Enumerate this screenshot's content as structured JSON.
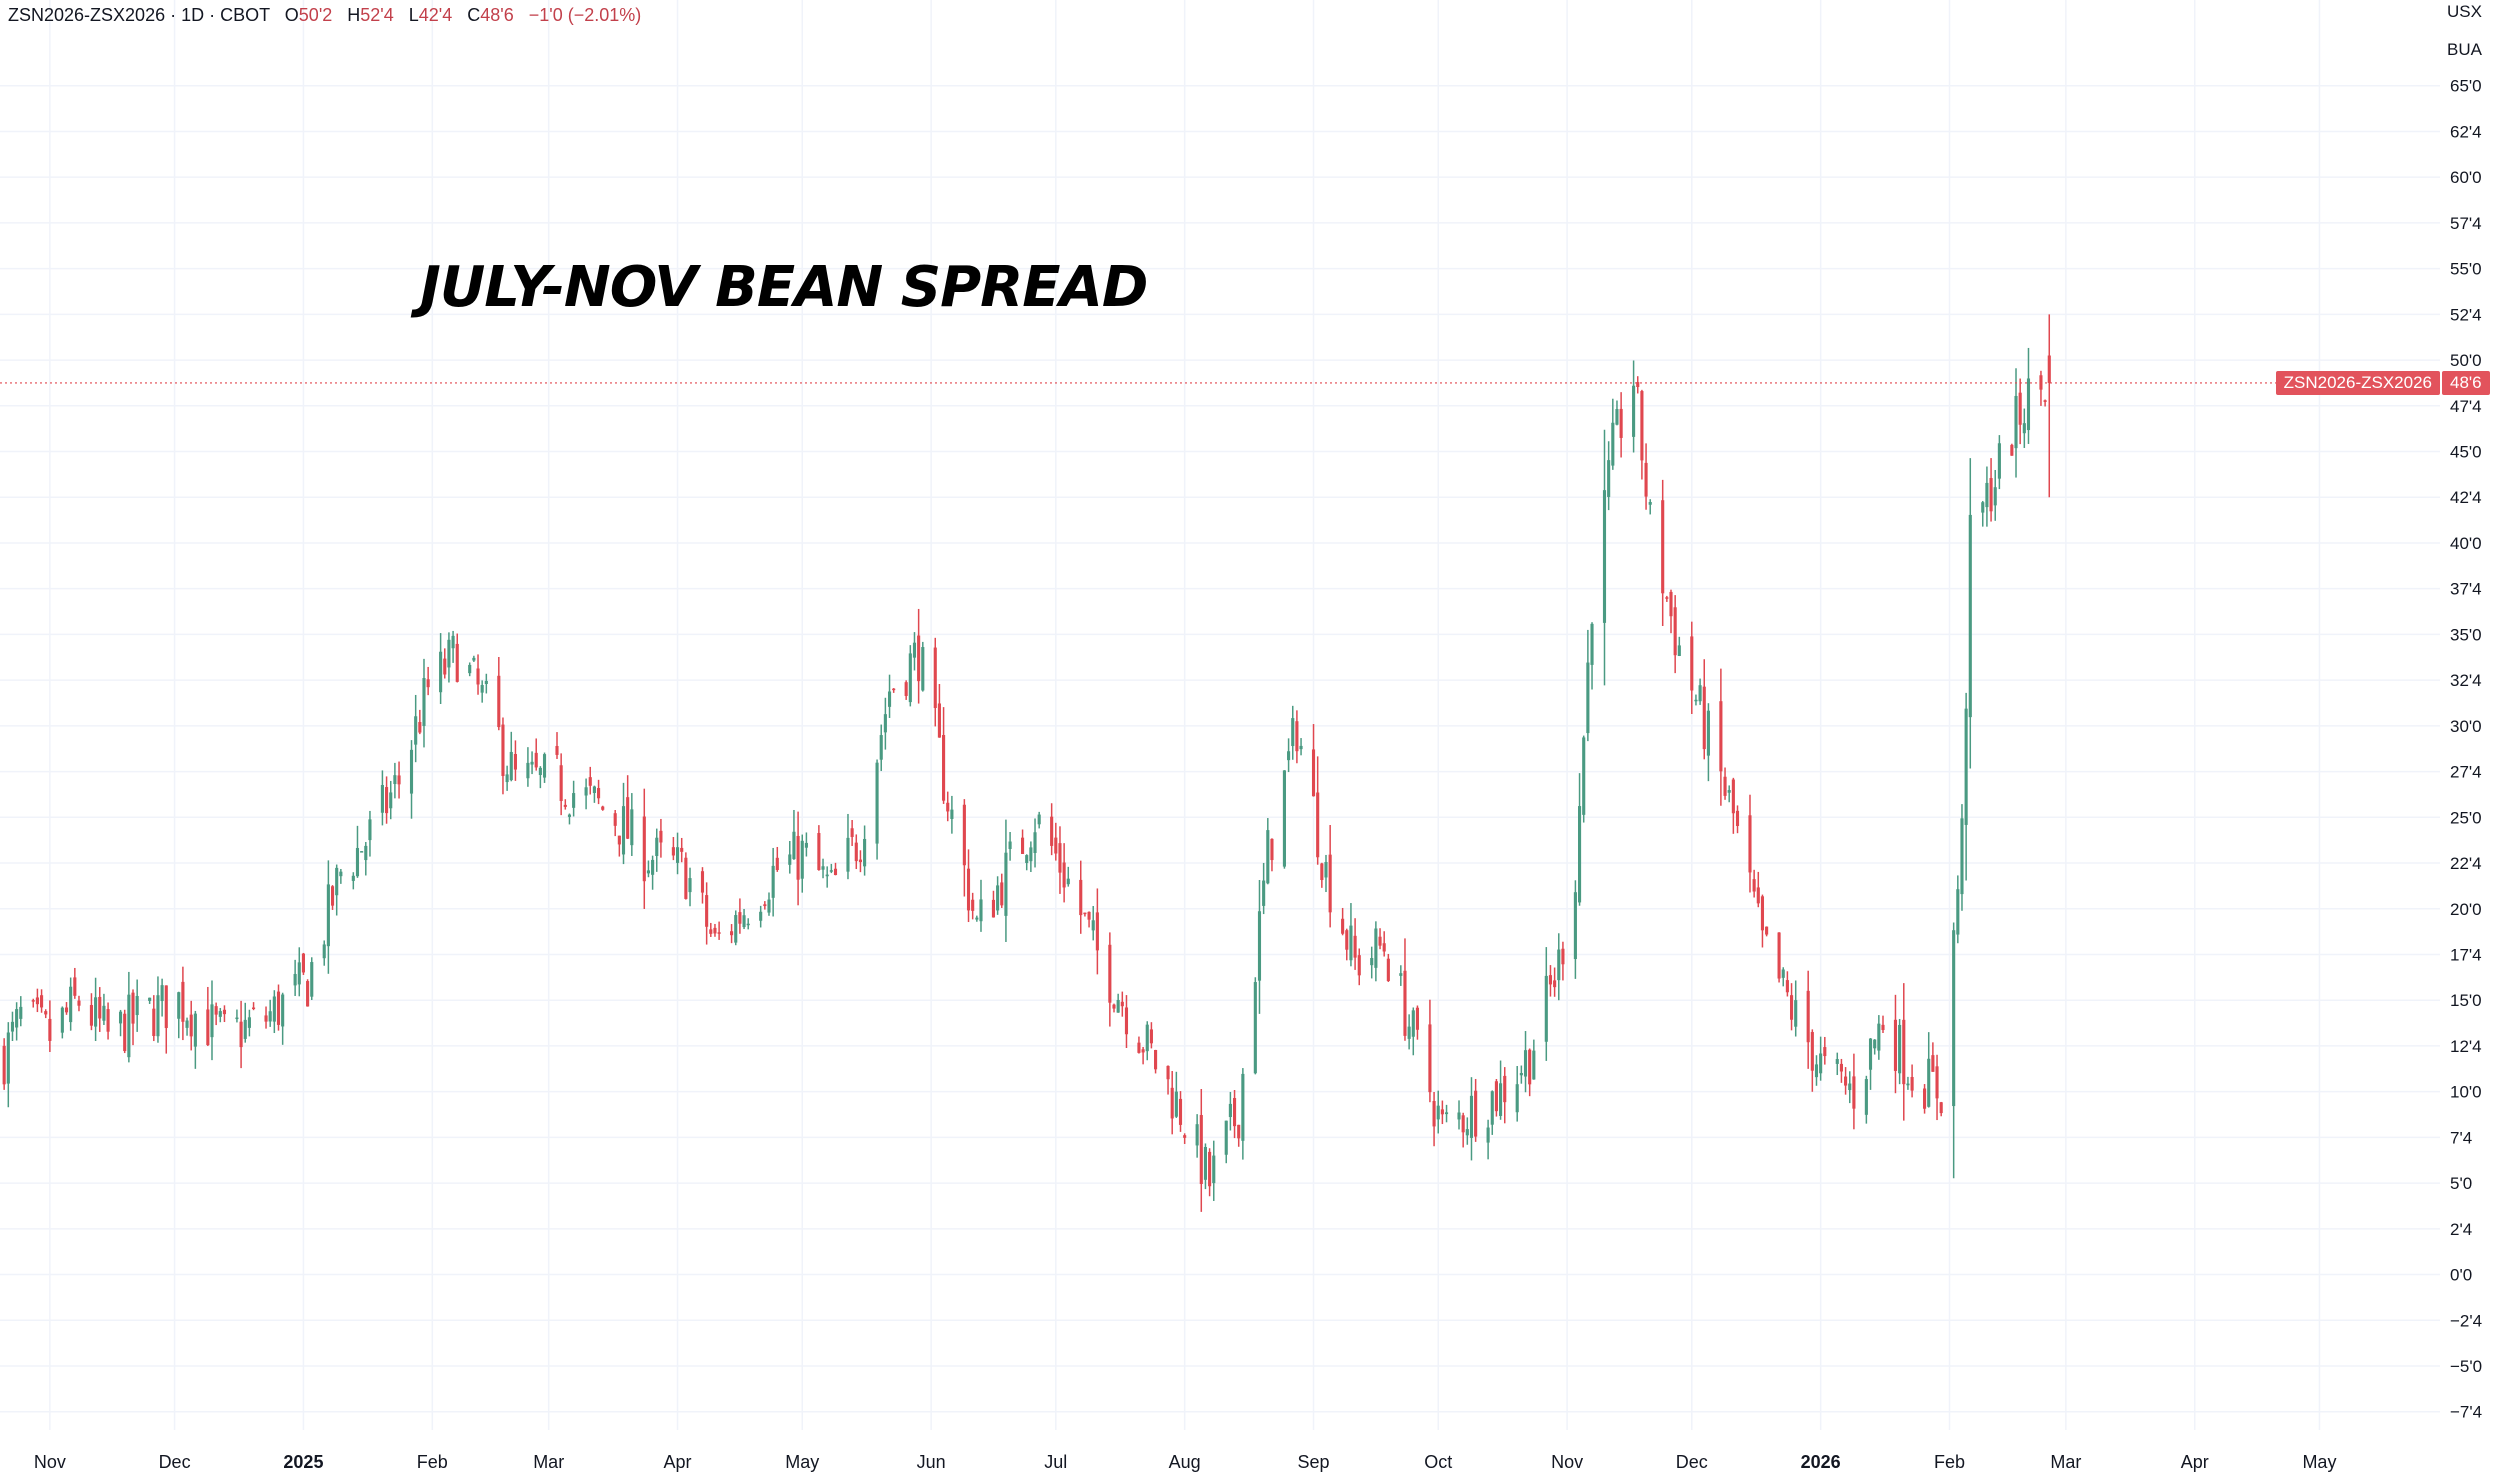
{
  "header": {
    "symbol": "ZSN2026-ZSX2026 · 1D · CBOT",
    "open_label": "O",
    "open_value": "50'2",
    "high_label": "H",
    "high_value": "52'4",
    "low_label": "L",
    "low_value": "42'4",
    "close_label": "C",
    "close_value": "48'6",
    "change": "−1'0 (−2.01%)"
  },
  "price_scale": {
    "currency": "USX",
    "unit": "BUA"
  },
  "last_price": {
    "series_label": "ZSN2026-ZSX2026",
    "value_label": "48'6",
    "value": 48.75
  },
  "annotation": "JULY-NOV BEAN SPREAD",
  "colors": {
    "up": "#4a9a82",
    "down": "#e0474f",
    "grid": "#f0f3fa",
    "axis_text": "#131722",
    "price_line": "#e0474f"
  },
  "chart_data": {
    "type": "candlestick",
    "title": "",
    "ylim": [
      -8.5,
      67.5
    ],
    "yticks": [
      65,
      62.5,
      60,
      57.5,
      55,
      52.5,
      50,
      47.5,
      45,
      42.5,
      40,
      37.5,
      35,
      32.5,
      30,
      27.5,
      25,
      22.5,
      20,
      17.5,
      15,
      12.5,
      10,
      7.5,
      5,
      2.5,
      0,
      -2.5,
      -5,
      -7.5
    ],
    "ytick_labels": [
      "65'0",
      "62'4",
      "60'0",
      "57'4",
      "55'0",
      "52'4",
      "50'0",
      "47'4",
      "45'0",
      "42'4",
      "40'0",
      "37'4",
      "35'0",
      "32'4",
      "30'0",
      "27'4",
      "25'0",
      "22'4",
      "20'0",
      "17'4",
      "15'0",
      "12'4",
      "10'0",
      "7'4",
      "5'0",
      "2'4",
      "0'0",
      "−2'4",
      "−5'0",
      "−7'4"
    ],
    "xlim": [
      "2024-10-20",
      "2026-05-30"
    ],
    "xticks": [
      {
        "date": "2024-11-01",
        "label": "Nov",
        "bold": false
      },
      {
        "date": "2024-12-01",
        "label": "Dec",
        "bold": false
      },
      {
        "date": "2025-01-01",
        "label": "2025",
        "bold": true
      },
      {
        "date": "2025-02-01",
        "label": "Feb",
        "bold": false
      },
      {
        "date": "2025-03-01",
        "label": "Mar",
        "bold": false
      },
      {
        "date": "2025-04-01",
        "label": "Apr",
        "bold": false
      },
      {
        "date": "2025-05-01",
        "label": "May",
        "bold": false
      },
      {
        "date": "2025-06-01",
        "label": "Jun",
        "bold": false
      },
      {
        "date": "2025-07-01",
        "label": "Jul",
        "bold": false
      },
      {
        "date": "2025-08-01",
        "label": "Aug",
        "bold": false
      },
      {
        "date": "2025-09-01",
        "label": "Sep",
        "bold": false
      },
      {
        "date": "2025-10-01",
        "label": "Oct",
        "bold": false
      },
      {
        "date": "2025-11-01",
        "label": "Nov",
        "bold": false
      },
      {
        "date": "2025-12-01",
        "label": "Dec",
        "bold": false
      },
      {
        "date": "2026-01-01",
        "label": "2026",
        "bold": true
      },
      {
        "date": "2026-02-01",
        "label": "Feb",
        "bold": false
      },
      {
        "date": "2026-03-01",
        "label": "Mar",
        "bold": false
      },
      {
        "date": "2026-04-01",
        "label": "Apr",
        "bold": false
      },
      {
        "date": "2026-05-01",
        "label": "May",
        "bold": false
      }
    ],
    "start_date": "2024-10-21",
    "end_date": "2026-02-25",
    "close_anchors": [
      [
        "2024-10-21",
        12
      ],
      [
        "2024-10-25",
        14
      ],
      [
        "2024-11-01",
        13
      ],
      [
        "2024-11-08",
        15
      ],
      [
        "2024-11-15",
        13
      ],
      [
        "2024-11-22",
        14
      ],
      [
        "2024-12-02",
        15
      ],
      [
        "2024-12-13",
        13
      ],
      [
        "2024-12-23",
        14
      ],
      [
        "2025-01-02",
        16
      ],
      [
        "2025-01-10",
        22
      ],
      [
        "2025-01-17",
        24
      ],
      [
        "2025-01-24",
        27
      ],
      [
        "2025-01-31",
        32
      ],
      [
        "2025-02-07",
        34
      ],
      [
        "2025-02-14",
        31
      ],
      [
        "2025-02-21",
        27
      ],
      [
        "2025-03-03",
        27
      ],
      [
        "2025-03-10",
        26
      ],
      [
        "2025-03-17",
        25
      ],
      [
        "2025-03-24",
        23
      ],
      [
        "2025-04-03",
        22
      ],
      [
        "2025-04-10",
        18
      ],
      [
        "2025-04-17",
        20
      ],
      [
        "2025-04-24",
        22
      ],
      [
        "2025-05-01",
        23
      ],
      [
        "2025-05-08",
        21
      ],
      [
        "2025-05-15",
        24
      ],
      [
        "2025-05-22",
        32
      ],
      [
        "2025-05-29",
        34
      ],
      [
        "2025-06-05",
        26
      ],
      [
        "2025-06-12",
        19
      ],
      [
        "2025-06-19",
        22
      ],
      [
        "2025-06-26",
        25
      ],
      [
        "2025-07-03",
        22
      ],
      [
        "2025-07-10",
        18
      ],
      [
        "2025-07-17",
        15
      ],
      [
        "2025-07-24",
        12
      ],
      [
        "2025-07-31",
        9
      ],
      [
        "2025-08-07",
        5
      ],
      [
        "2025-08-14",
        9
      ],
      [
        "2025-08-21",
        23
      ],
      [
        "2025-08-28",
        30
      ],
      [
        "2025-09-04",
        22
      ],
      [
        "2025-09-11",
        17
      ],
      [
        "2025-09-18",
        18
      ],
      [
        "2025-09-25",
        13
      ],
      [
        "2025-10-02",
        8
      ],
      [
        "2025-10-09",
        9
      ],
      [
        "2025-10-16",
        10
      ],
      [
        "2025-10-23",
        12
      ],
      [
        "2025-10-30",
        17
      ],
      [
        "2025-11-03",
        22
      ],
      [
        "2025-11-07",
        37
      ],
      [
        "2025-11-12",
        45
      ],
      [
        "2025-11-17",
        49
      ],
      [
        "2025-11-21",
        41
      ],
      [
        "2025-11-27",
        35
      ],
      [
        "2025-12-04",
        30
      ],
      [
        "2025-12-11",
        25
      ],
      [
        "2025-12-18",
        18
      ],
      [
        "2025-12-26",
        14
      ],
      [
        "2026-01-02",
        11
      ],
      [
        "2026-01-09",
        10
      ],
      [
        "2026-01-16",
        14
      ],
      [
        "2026-01-23",
        11
      ],
      [
        "2026-01-30",
        10
      ],
      [
        "2026-02-04",
        24
      ],
      [
        "2026-02-06",
        40
      ],
      [
        "2026-02-11",
        43
      ],
      [
        "2026-02-16",
        46
      ],
      [
        "2026-02-20",
        48
      ],
      [
        "2026-02-25",
        48.75
      ]
    ],
    "last_candle": {
      "open": 50.25,
      "high": 52.5,
      "low": 42.5,
      "close": 48.75
    }
  }
}
